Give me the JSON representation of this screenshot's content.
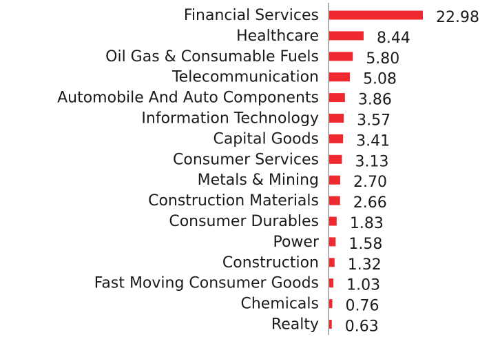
{
  "chart_data": {
    "type": "bar",
    "orientation": "horizontal",
    "title": "",
    "xlabel": "",
    "ylabel": "",
    "bar_color": "#ee2a30",
    "categories": [
      "Financial Services",
      "Healthcare",
      "Oil Gas & Consumable Fuels",
      "Telecommunication",
      "Automobile And Auto Components",
      "Information Technology",
      "Capital Goods",
      "Consumer Services",
      "Metals & Mining",
      "Construction Materials",
      "Consumer Durables",
      "Power",
      "Construction",
      "Fast Moving Consumer Goods",
      "Chemicals",
      "Realty"
    ],
    "values": [
      22.98,
      8.44,
      5.8,
      5.08,
      3.86,
      3.57,
      3.41,
      3.13,
      2.7,
      2.66,
      1.83,
      1.58,
      1.32,
      1.03,
      0.76,
      0.63
    ],
    "value_labels": [
      "22.98",
      "8.44",
      "5.80",
      "5.08",
      "3.86",
      "3.57",
      "3.41",
      "3.13",
      "2.70",
      "2.66",
      "1.83",
      "1.58",
      "1.32",
      "1.03",
      "0.76",
      "0.63"
    ],
    "xlim": [
      0,
      22.98
    ],
    "grid": false,
    "legend": "none"
  }
}
